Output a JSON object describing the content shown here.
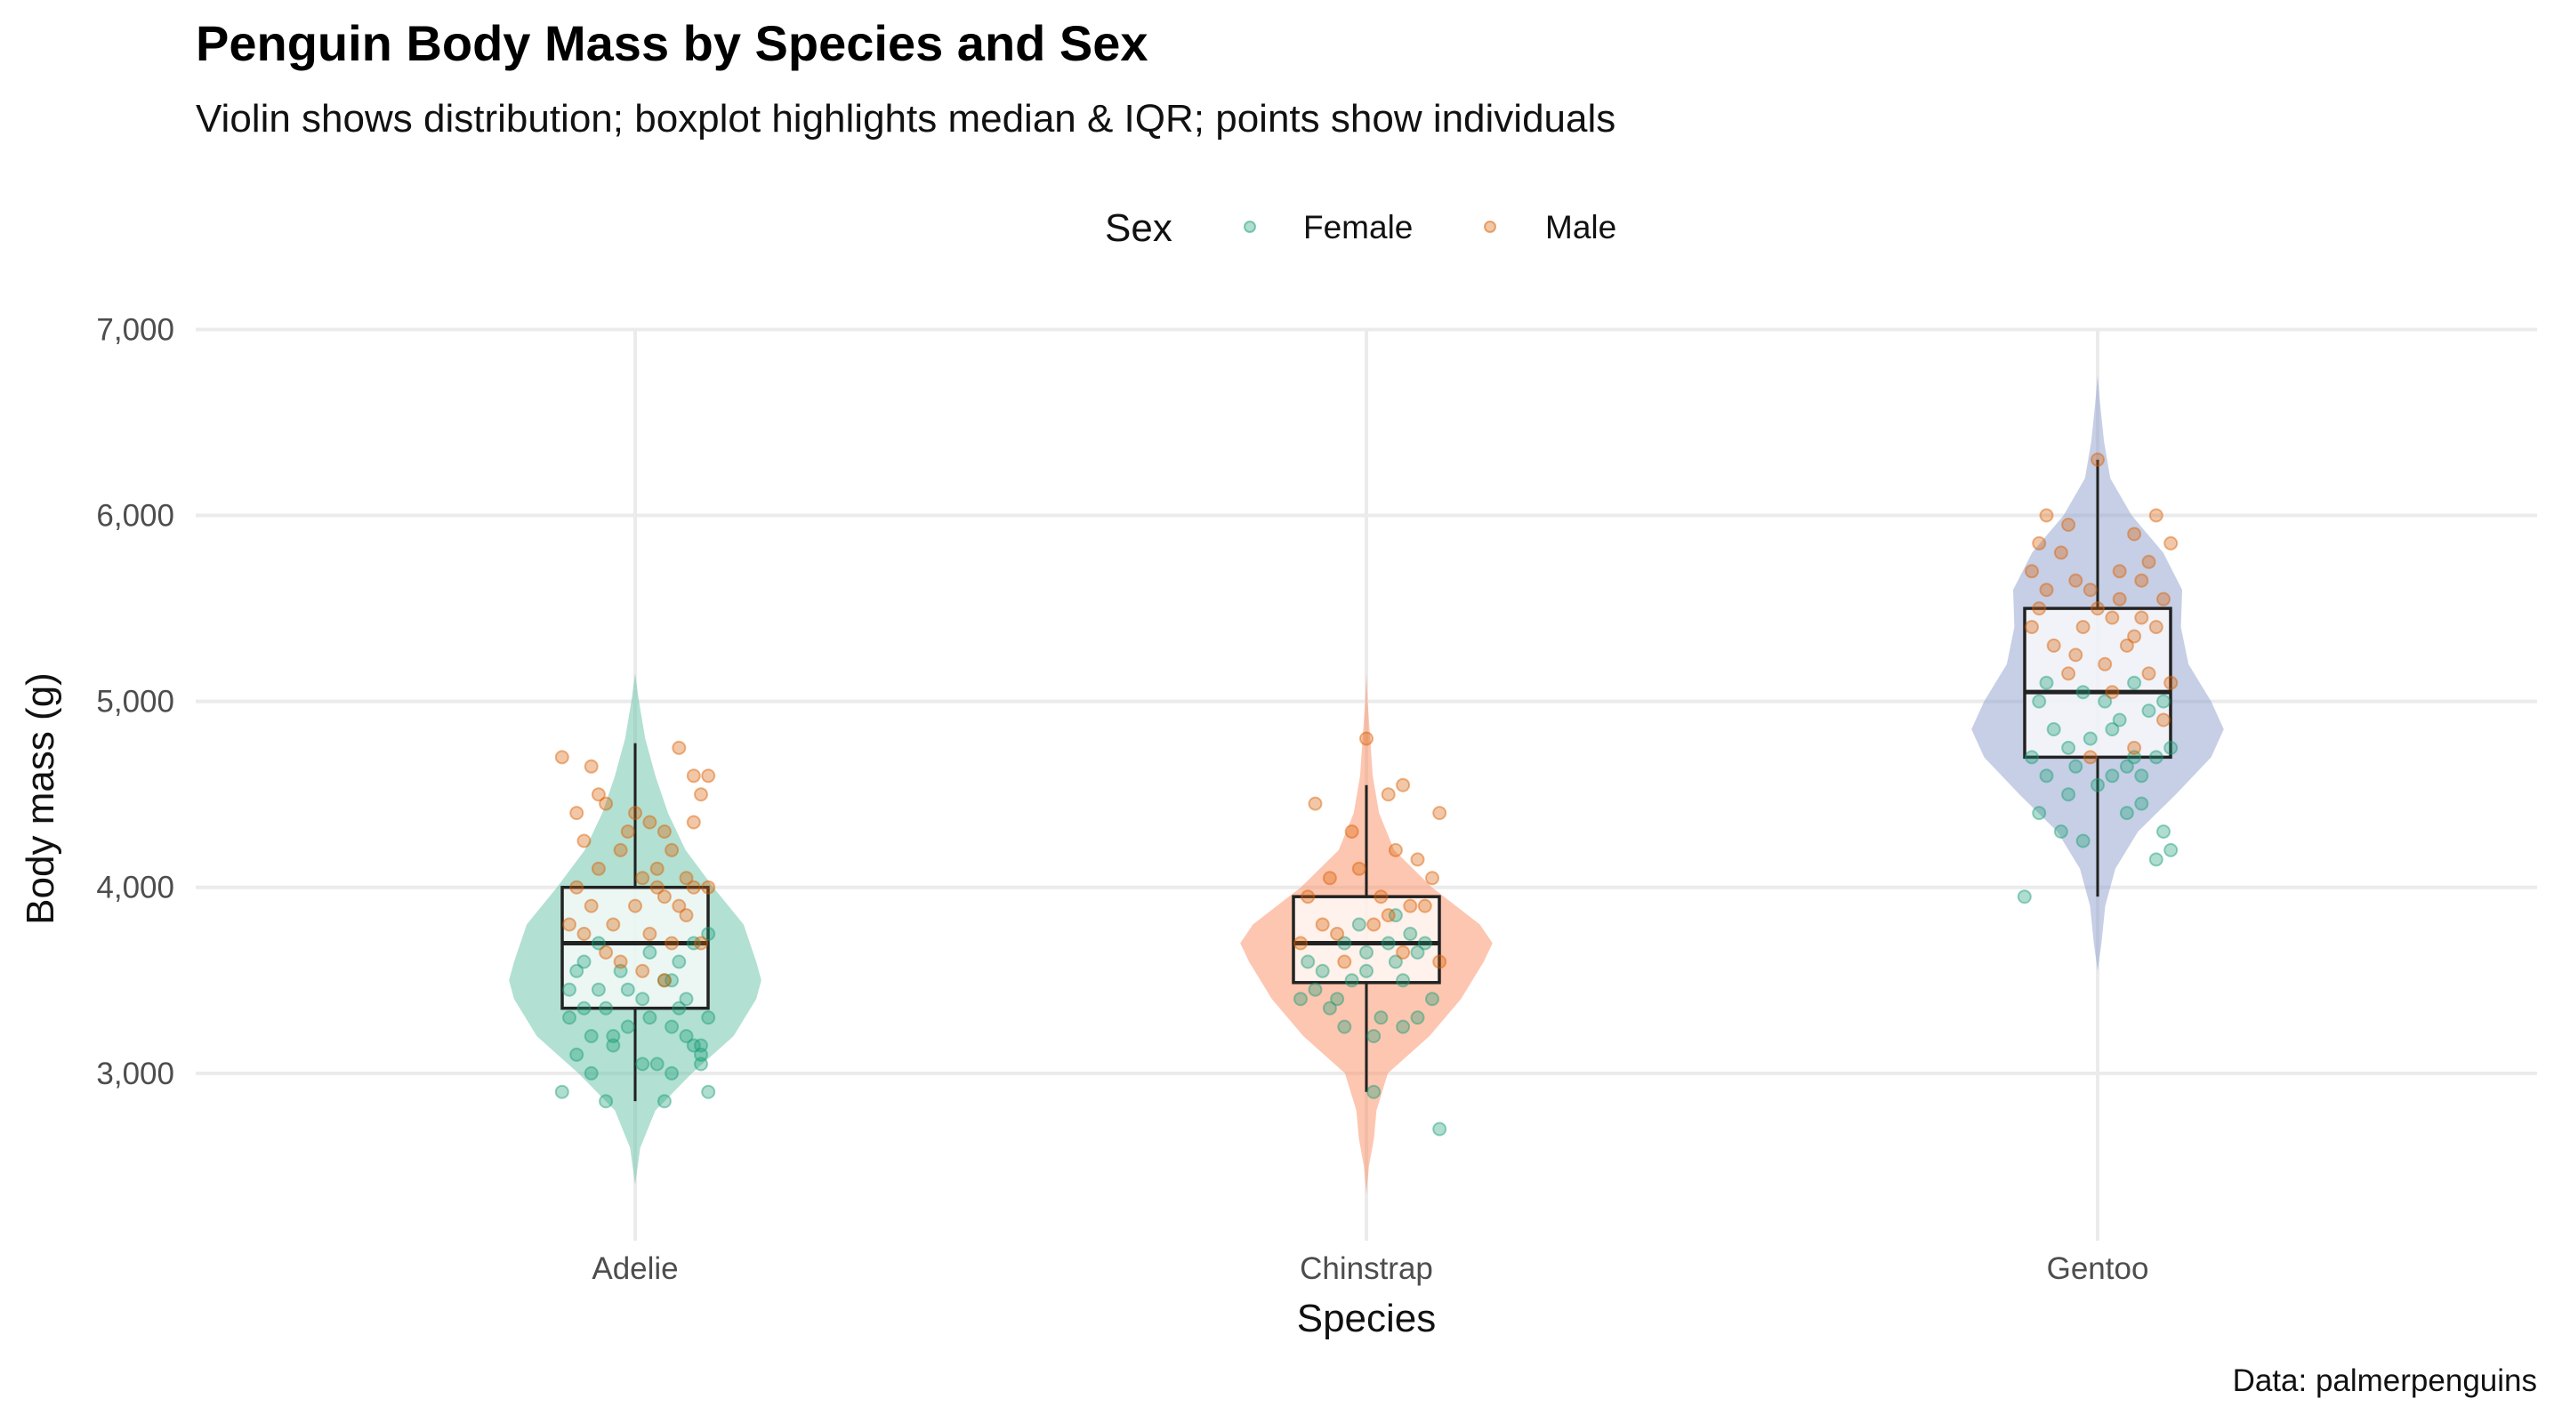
{
  "chart_data": {
    "type": "violin",
    "title": "Penguin Body Mass by Species and Sex",
    "subtitle": "Violin shows distribution; boxplot highlights median & IQR; points show individuals",
    "xlabel": "Species",
    "ylabel": "Body mass (g)",
    "caption": "Data: palmerpenguins",
    "ylim": [
      2100,
      7050
    ],
    "yticks": [
      3000,
      4000,
      5000,
      6000,
      7000
    ],
    "ytick_labels": [
      "3,000",
      "4,000",
      "5,000",
      "6,000",
      "7,000"
    ],
    "grid": true,
    "legend": {
      "title": "Sex",
      "position": "top",
      "items": [
        {
          "label": "Female",
          "color": "#1b9e77"
        },
        {
          "label": "Male",
          "color": "#d95f02"
        }
      ]
    },
    "categories": [
      "Adelie",
      "Chinstrap",
      "Gentoo"
    ],
    "violin_colors": [
      "#66c2a5",
      "#fc8d62",
      "#8da0cb"
    ],
    "boxplots": [
      {
        "species": "Adelie",
        "min": 2850,
        "q1": 3350,
        "median": 3700,
        "q3": 4000,
        "max": 4775
      },
      {
        "species": "Chinstrap",
        "min": 2900,
        "q1": 3488,
        "median": 3700,
        "q3": 3950,
        "max": 4550
      },
      {
        "species": "Gentoo",
        "min": 3950,
        "q1": 4700,
        "median": 5050,
        "q3": 5500,
        "max": 6300
      }
    ],
    "violins": [
      {
        "species": "Adelie",
        "profile": [
          [
            2400,
            0
          ],
          [
            2600,
            0.04
          ],
          [
            2800,
            0.16
          ],
          [
            3000,
            0.45
          ],
          [
            3200,
            0.78
          ],
          [
            3400,
            0.96
          ],
          [
            3500,
            1.0
          ],
          [
            3600,
            0.96
          ],
          [
            3800,
            0.86
          ],
          [
            4000,
            0.62
          ],
          [
            4200,
            0.4
          ],
          [
            4400,
            0.26
          ],
          [
            4600,
            0.16
          ],
          [
            4800,
            0.08
          ],
          [
            5000,
            0.03
          ],
          [
            5150,
            0
          ]
        ]
      },
      {
        "species": "Chinstrap",
        "profile": [
          [
            2350,
            0
          ],
          [
            2500,
            0.02
          ],
          [
            2650,
            0.06
          ],
          [
            2800,
            0.08
          ],
          [
            3000,
            0.17
          ],
          [
            3200,
            0.5
          ],
          [
            3400,
            0.75
          ],
          [
            3600,
            0.93
          ],
          [
            3700,
            1.0
          ],
          [
            3800,
            0.9
          ],
          [
            4000,
            0.52
          ],
          [
            4200,
            0.22
          ],
          [
            4400,
            0.1
          ],
          [
            4600,
            0.05
          ],
          [
            4800,
            0.03
          ],
          [
            5000,
            0.01
          ],
          [
            5150,
            0
          ]
        ]
      },
      {
        "species": "Gentoo",
        "profile": [
          [
            3550,
            0
          ],
          [
            3700,
            0.03
          ],
          [
            3900,
            0.06
          ],
          [
            4100,
            0.14
          ],
          [
            4300,
            0.32
          ],
          [
            4500,
            0.62
          ],
          [
            4700,
            0.9
          ],
          [
            4850,
            1.0
          ],
          [
            5000,
            0.9
          ],
          [
            5200,
            0.72
          ],
          [
            5400,
            0.66
          ],
          [
            5600,
            0.67
          ],
          [
            5800,
            0.52
          ],
          [
            6000,
            0.27
          ],
          [
            6200,
            0.1
          ],
          [
            6400,
            0.05
          ],
          [
            6600,
            0.02
          ],
          [
            6750,
            0
          ]
        ]
      }
    ],
    "points": {
      "Adelie": {
        "Female": [
          [
            -0.09,
            3300
          ],
          [
            -0.07,
            3350
          ],
          [
            -0.05,
            3450
          ],
          [
            0.01,
            3400
          ],
          [
            0.05,
            3500
          ],
          [
            0.1,
            3300
          ],
          [
            -0.03,
            3200
          ],
          [
            0.08,
            3150
          ],
          [
            -0.08,
            3100
          ],
          [
            0.03,
            3050
          ],
          [
            0.09,
            3100
          ],
          [
            -0.01,
            3250
          ],
          [
            0.07,
            3200
          ],
          [
            -0.1,
            2900
          ],
          [
            -0.04,
            2850
          ],
          [
            0.04,
            2850
          ],
          [
            0.1,
            2900
          ],
          [
            -0.06,
            3000
          ],
          [
            0.05,
            3000
          ],
          [
            0.09,
            3050
          ],
          [
            -0.02,
            3550
          ],
          [
            0.06,
            3600
          ],
          [
            -0.07,
            3600
          ],
          [
            0.02,
            3650
          ],
          [
            0.08,
            3700
          ],
          [
            -0.05,
            3700
          ],
          [
            0.1,
            3750
          ],
          [
            -0.08,
            3550
          ],
          [
            0.04,
            3500
          ],
          [
            -0.01,
            3450
          ],
          [
            0.07,
            3400
          ],
          [
            -0.04,
            3350
          ],
          [
            0.02,
            3300
          ],
          [
            -0.09,
            3450
          ],
          [
            0.05,
            3250
          ],
          [
            -0.03,
            3150
          ],
          [
            0.09,
            3150
          ],
          [
            -0.06,
            3200
          ],
          [
            0.01,
            3050
          ],
          [
            0.06,
            3350
          ]
        ],
        "Male": [
          [
            -0.1,
            4700
          ],
          [
            -0.06,
            4650
          ],
          [
            0.0,
            4400
          ],
          [
            0.04,
            4300
          ],
          [
            0.08,
            4600
          ],
          [
            0.1,
            4600
          ],
          [
            0.06,
            4750
          ],
          [
            -0.08,
            4400
          ],
          [
            -0.04,
            4450
          ],
          [
            0.02,
            4350
          ],
          [
            0.05,
            4200
          ],
          [
            0.09,
            4500
          ],
          [
            -0.07,
            4250
          ],
          [
            -0.02,
            4200
          ],
          [
            0.03,
            4100
          ],
          [
            0.07,
            4050
          ],
          [
            -0.05,
            4100
          ],
          [
            0.0,
            3900
          ],
          [
            0.04,
            3950
          ],
          [
            0.08,
            4000
          ],
          [
            -0.09,
            3800
          ],
          [
            -0.03,
            3800
          ],
          [
            0.01,
            4050
          ],
          [
            0.06,
            3900
          ],
          [
            0.1,
            4000
          ],
          [
            -0.06,
            3900
          ],
          [
            -0.01,
            4300
          ],
          [
            0.03,
            4000
          ],
          [
            0.07,
            3850
          ],
          [
            -0.08,
            4000
          ],
          [
            0.02,
            3750
          ],
          [
            0.05,
            3700
          ],
          [
            -0.04,
            3650
          ],
          [
            0.09,
            3700
          ],
          [
            -0.07,
            3750
          ],
          [
            0.01,
            3550
          ],
          [
            0.04,
            3500
          ],
          [
            -0.02,
            3600
          ],
          [
            0.08,
            4350
          ],
          [
            -0.05,
            4500
          ]
        ]
      },
      "Chinstrap": {
        "Female": [
          [
            -0.04,
            3400
          ],
          [
            -0.02,
            3500
          ],
          [
            0.0,
            3550
          ],
          [
            0.04,
            3600
          ],
          [
            0.07,
            3650
          ],
          [
            -0.07,
            3450
          ],
          [
            -0.05,
            3350
          ],
          [
            0.02,
            3300
          ],
          [
            0.05,
            3250
          ],
          [
            0.09,
            3400
          ],
          [
            -0.08,
            3600
          ],
          [
            0.03,
            3700
          ],
          [
            -0.03,
            3700
          ],
          [
            0.06,
            3750
          ],
          [
            -0.01,
            3800
          ],
          [
            0.08,
            3700
          ],
          [
            -0.09,
            3400
          ],
          [
            0.01,
            3200
          ],
          [
            0.05,
            3500
          ],
          [
            0.1,
            2700
          ],
          [
            0.01,
            2900
          ],
          [
            -0.06,
            3550
          ],
          [
            0.04,
            3850
          ],
          [
            0.07,
            3300
          ],
          [
            -0.03,
            3250
          ],
          [
            0.0,
            3650
          ]
        ],
        "Male": [
          [
            -0.07,
            4450
          ],
          [
            0.0,
            4800
          ],
          [
            0.03,
            4500
          ],
          [
            0.05,
            4550
          ],
          [
            0.1,
            4400
          ],
          [
            -0.02,
            4300
          ],
          [
            0.04,
            4200
          ],
          [
            0.07,
            4150
          ],
          [
            -0.05,
            4050
          ],
          [
            -0.01,
            4100
          ],
          [
            0.02,
            3950
          ],
          [
            0.06,
            3900
          ],
          [
            0.09,
            4050
          ],
          [
            -0.08,
            3950
          ],
          [
            -0.04,
            3750
          ],
          [
            0.01,
            3800
          ],
          [
            0.08,
            3900
          ],
          [
            -0.09,
            3700
          ],
          [
            0.05,
            3650
          ],
          [
            -0.03,
            3600
          ],
          [
            0.1,
            3600
          ],
          [
            -0.06,
            3800
          ],
          [
            0.03,
            3850
          ]
        ]
      },
      "Gentoo": {
        "Female": [
          [
            -0.1,
            3950
          ],
          [
            -0.05,
            4300
          ],
          [
            -0.08,
            4400
          ],
          [
            -0.02,
            4250
          ],
          [
            0.04,
            4400
          ],
          [
            0.08,
            4150
          ],
          [
            0.1,
            4200
          ],
          [
            -0.04,
            4500
          ],
          [
            0.0,
            4550
          ],
          [
            0.06,
            4450
          ],
          [
            0.09,
            4300
          ],
          [
            -0.07,
            4600
          ],
          [
            -0.03,
            4650
          ],
          [
            0.02,
            4600
          ],
          [
            0.05,
            4700
          ],
          [
            0.1,
            4750
          ],
          [
            -0.09,
            4700
          ],
          [
            -0.01,
            4800
          ],
          [
            0.03,
            4900
          ],
          [
            0.07,
            4950
          ],
          [
            -0.06,
            4850
          ],
          [
            0.01,
            5000
          ],
          [
            0.05,
            5100
          ],
          [
            0.09,
            5000
          ],
          [
            -0.08,
            5000
          ],
          [
            -0.02,
            5050
          ],
          [
            0.04,
            4650
          ],
          [
            0.08,
            4700
          ],
          [
            -0.04,
            4750
          ],
          [
            0.06,
            4600
          ],
          [
            -0.07,
            5100
          ],
          [
            0.02,
            4850
          ]
        ],
        "Male": [
          [
            0.0,
            6300
          ],
          [
            0.08,
            6000
          ],
          [
            -0.07,
            6000
          ],
          [
            -0.04,
            5950
          ],
          [
            0.05,
            5900
          ],
          [
            0.1,
            5850
          ],
          [
            -0.09,
            5700
          ],
          [
            -0.05,
            5800
          ],
          [
            -0.01,
            5600
          ],
          [
            0.03,
            5700
          ],
          [
            0.06,
            5650
          ],
          [
            0.09,
            5550
          ],
          [
            -0.08,
            5500
          ],
          [
            -0.02,
            5400
          ],
          [
            0.02,
            5450
          ],
          [
            0.05,
            5350
          ],
          [
            0.08,
            5400
          ],
          [
            -0.06,
            5300
          ],
          [
            -0.03,
            5250
          ],
          [
            0.01,
            5200
          ],
          [
            0.04,
            5300
          ],
          [
            0.07,
            5150
          ],
          [
            0.1,
            5100
          ],
          [
            -0.09,
            5400
          ],
          [
            0.0,
            5500
          ],
          [
            0.03,
            5550
          ],
          [
            -0.07,
            5600
          ],
          [
            0.06,
            5450
          ],
          [
            0.09,
            4900
          ],
          [
            -0.04,
            5150
          ],
          [
            0.02,
            5050
          ],
          [
            -0.01,
            4700
          ],
          [
            0.05,
            4750
          ],
          [
            -0.08,
            5850
          ],
          [
            0.07,
            5750
          ],
          [
            -0.03,
            5650
          ]
        ]
      }
    }
  }
}
